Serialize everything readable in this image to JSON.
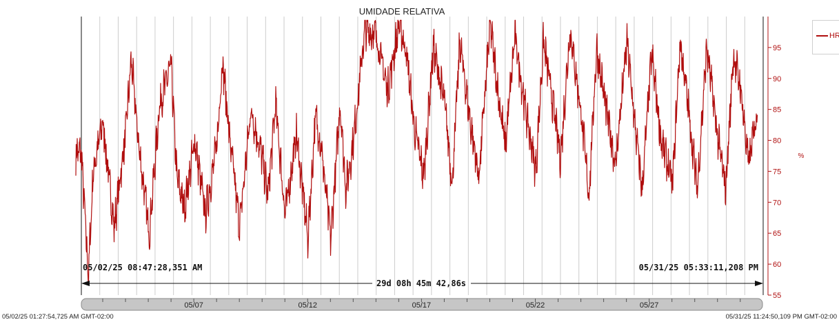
{
  "chart_data": {
    "type": "line",
    "title": "UMIDADE RELATIVA",
    "ylabel": "%",
    "ylim": [
      55,
      100
    ],
    "y_ticks": [
      55,
      60,
      65,
      70,
      75,
      80,
      85,
      90,
      95
    ],
    "x_start": "2025-05-02T01:27:54.725",
    "x_end": "2025-05-31T23:24:50.109",
    "x_ticks": [
      "05/07",
      "05/12",
      "05/17",
      "05/22",
      "05/27"
    ],
    "x_tick_dates": [
      "2025-05-07",
      "2025-05-12",
      "2025-05-17",
      "2025-05-22",
      "2025-05-27"
    ],
    "grid": "vertical",
    "legend_position": "right",
    "series": [
      {
        "name": "HR",
        "color": "#b00e0e",
        "x": [
          "2025-05-02T01:27",
          "2025-05-02T08:47",
          "2025-05-02T14:00",
          "2025-05-03T00:00",
          "2025-05-03T12:00",
          "2025-05-04T00:00",
          "2025-05-04T06:00",
          "2025-05-04T14:00",
          "2025-05-05T01:00",
          "2025-05-05T12:00",
          "2025-05-06T00:00",
          "2025-05-06T06:00",
          "2025-05-06T14:00",
          "2025-05-07T01:00",
          "2025-05-07T12:00",
          "2025-05-08T00:00",
          "2025-05-08T06:00",
          "2025-05-08T14:00",
          "2025-05-09T00:00",
          "2025-05-09T12:00",
          "2025-05-10T00:00",
          "2025-05-10T06:00",
          "2025-05-10T14:00",
          "2025-05-11T00:00",
          "2025-05-11T12:00",
          "2025-05-12T00:00",
          "2025-05-12T08:00",
          "2025-05-12T14:00",
          "2025-05-13T00:00",
          "2025-05-13T10:00",
          "2025-05-13T16:00",
          "2025-05-14T00:00",
          "2025-05-14T12:00",
          "2025-05-15T00:00",
          "2025-05-15T12:00",
          "2025-05-16T00:00",
          "2025-05-16T08:00",
          "2025-05-16T16:00",
          "2025-05-17T02:00",
          "2025-05-17T12:00",
          "2025-05-18T00:00",
          "2025-05-18T08:00",
          "2025-05-18T16:00",
          "2025-05-19T02:00",
          "2025-05-19T12:00",
          "2025-05-20T00:00",
          "2025-05-20T08:00",
          "2025-05-20T16:00",
          "2025-05-21T02:00",
          "2025-05-21T12:00",
          "2025-05-22T00:00",
          "2025-05-22T08:00",
          "2025-05-22T16:00",
          "2025-05-23T02:00",
          "2025-05-23T12:00",
          "2025-05-24T00:00",
          "2025-05-24T08:00",
          "2025-05-24T16:00",
          "2025-05-25T02:00",
          "2025-05-25T12:00",
          "2025-05-26T00:00",
          "2025-05-26T08:00",
          "2025-05-26T16:00",
          "2025-05-27T02:00",
          "2025-05-27T12:00",
          "2025-05-28T00:00",
          "2025-05-28T08:00",
          "2025-05-28T16:00",
          "2025-05-29T02:00",
          "2025-05-29T12:00",
          "2025-05-30T00:00",
          "2025-05-30T08:00",
          "2025-05-30T16:00",
          "2025-05-31T00:00",
          "2025-05-31T08:00",
          "2025-05-31T17:33"
        ],
        "values": [
          78,
          58,
          75,
          83,
          66,
          81,
          93,
          79,
          65,
          86,
          92,
          74,
          69,
          80,
          68,
          79,
          93,
          80,
          66,
          85,
          77,
          71,
          86,
          68,
          81,
          64,
          84,
          79,
          64,
          86,
          72,
          80,
          98,
          97,
          88,
          99,
          94,
          82,
          74,
          95,
          86,
          73,
          96,
          84,
          74,
          99,
          88,
          79,
          97,
          86,
          75,
          96,
          88,
          77,
          98,
          84,
          71,
          95,
          85,
          76,
          96,
          83,
          72,
          94,
          80,
          73,
          96,
          86,
          72,
          95,
          80,
          72,
          94,
          88,
          76,
          85
        ]
      }
    ]
  },
  "cursors": {
    "left": "05/02/25 08:47:28,351 AM",
    "right": "05/31/25 05:33:11,208 PM",
    "span": "29d 08h 45m 42,86s"
  },
  "scrollbar": {
    "start_label": "05/02/25 01:27:54,725 AM GMT-02:00",
    "end_label": "05/31/25 11:24:50,109 PM GMT-02:00"
  }
}
